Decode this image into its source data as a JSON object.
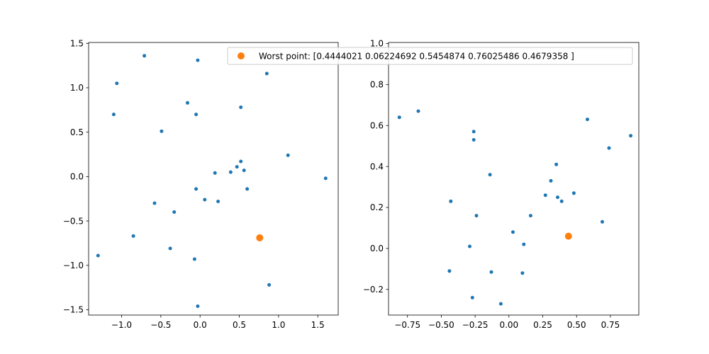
{
  "legend": {
    "label": "Worst point: [0.4444021  0.06224692 0.5454874  0.76025486 0.4679358 ]",
    "color": "#ff7f0e"
  },
  "chart_data": [
    {
      "type": "scatter",
      "xlim": [
        -1.42,
        1.76
      ],
      "ylim": [
        -1.56,
        1.51
      ],
      "xticks": [
        -1.0,
        -0.5,
        0.0,
        0.5,
        1.0,
        1.5
      ],
      "xtick_labels": [
        "−1.0",
        "−0.5",
        "0.0",
        "0.5",
        "1.0",
        "1.5"
      ],
      "yticks": [
        -1.5,
        -1.0,
        -0.5,
        0.0,
        0.5,
        1.0,
        1.5
      ],
      "ytick_labels": [
        "−1.5",
        "−1.0",
        "−0.5",
        "0.0",
        "0.5",
        "1.0",
        "1.5"
      ],
      "grid": false,
      "series": [
        {
          "color": "#1f77b4",
          "points": [
            [
              -0.71,
              1.36
            ],
            [
              -0.03,
              1.31
            ],
            [
              -1.06,
              1.05
            ],
            [
              0.85,
              1.16
            ],
            [
              -0.16,
              0.83
            ],
            [
              -1.1,
              0.7
            ],
            [
              -0.05,
              0.7
            ],
            [
              0.52,
              0.78
            ],
            [
              -0.49,
              0.51
            ],
            [
              1.12,
              0.24
            ],
            [
              1.6,
              -0.02
            ],
            [
              0.19,
              0.04
            ],
            [
              0.39,
              0.05
            ],
            [
              0.47,
              0.11
            ],
            [
              0.52,
              0.17
            ],
            [
              0.56,
              0.07
            ],
            [
              -0.05,
              -0.14
            ],
            [
              0.6,
              -0.14
            ],
            [
              0.06,
              -0.26
            ],
            [
              0.23,
              -0.28
            ],
            [
              -0.58,
              -0.3
            ],
            [
              -0.33,
              -0.4
            ],
            [
              -0.85,
              -0.67
            ],
            [
              -1.3,
              -0.89
            ],
            [
              -0.38,
              -0.81
            ],
            [
              -0.07,
              -0.93
            ],
            [
              0.88,
              -1.22
            ],
            [
              -0.03,
              -1.46
            ]
          ]
        },
        {
          "color": "#ff7f0e",
          "points": [
            [
              0.76,
              -0.69
            ]
          ]
        }
      ]
    },
    {
      "type": "scatter",
      "xlim": [
        -0.89,
        0.96
      ],
      "ylim": [
        -0.325,
        1.005
      ],
      "xticks": [
        -0.75,
        -0.5,
        -0.25,
        0.0,
        0.25,
        0.5,
        0.75
      ],
      "xtick_labels": [
        "−0.75",
        "−0.50",
        "−0.25",
        "0.00",
        "0.25",
        "0.50",
        "0.75"
      ],
      "yticks": [
        -0.2,
        0.0,
        0.2,
        0.4,
        0.6,
        0.8,
        1.0
      ],
      "ytick_labels": [
        "−0.2",
        "0.0",
        "0.2",
        "0.4",
        "0.6",
        "0.8",
        "1.0"
      ],
      "grid": false,
      "series": [
        {
          "color": "#1f77b4",
          "points": [
            [
              -0.81,
              0.64
            ],
            [
              -0.67,
              0.67
            ],
            [
              -0.26,
              0.57
            ],
            [
              -0.26,
              0.53
            ],
            [
              0.58,
              0.63
            ],
            [
              0.9,
              0.55
            ],
            [
              0.74,
              0.49
            ],
            [
              -0.14,
              0.36
            ],
            [
              0.35,
              0.41
            ],
            [
              0.31,
              0.33
            ],
            [
              0.27,
              0.26
            ],
            [
              0.36,
              0.25
            ],
            [
              0.39,
              0.23
            ],
            [
              0.48,
              0.27
            ],
            [
              -0.43,
              0.23
            ],
            [
              -0.24,
              0.16
            ],
            [
              0.16,
              0.16
            ],
            [
              0.69,
              0.13
            ],
            [
              0.03,
              0.08
            ],
            [
              0.11,
              0.02
            ],
            [
              -0.29,
              0.01
            ],
            [
              -0.44,
              -0.11
            ],
            [
              -0.13,
              -0.115
            ],
            [
              0.1,
              -0.12
            ],
            [
              -0.27,
              -0.24
            ],
            [
              -0.06,
              -0.27
            ]
          ]
        },
        {
          "color": "#ff7f0e",
          "points": [
            [
              0.44,
              0.06
            ]
          ]
        }
      ]
    }
  ]
}
